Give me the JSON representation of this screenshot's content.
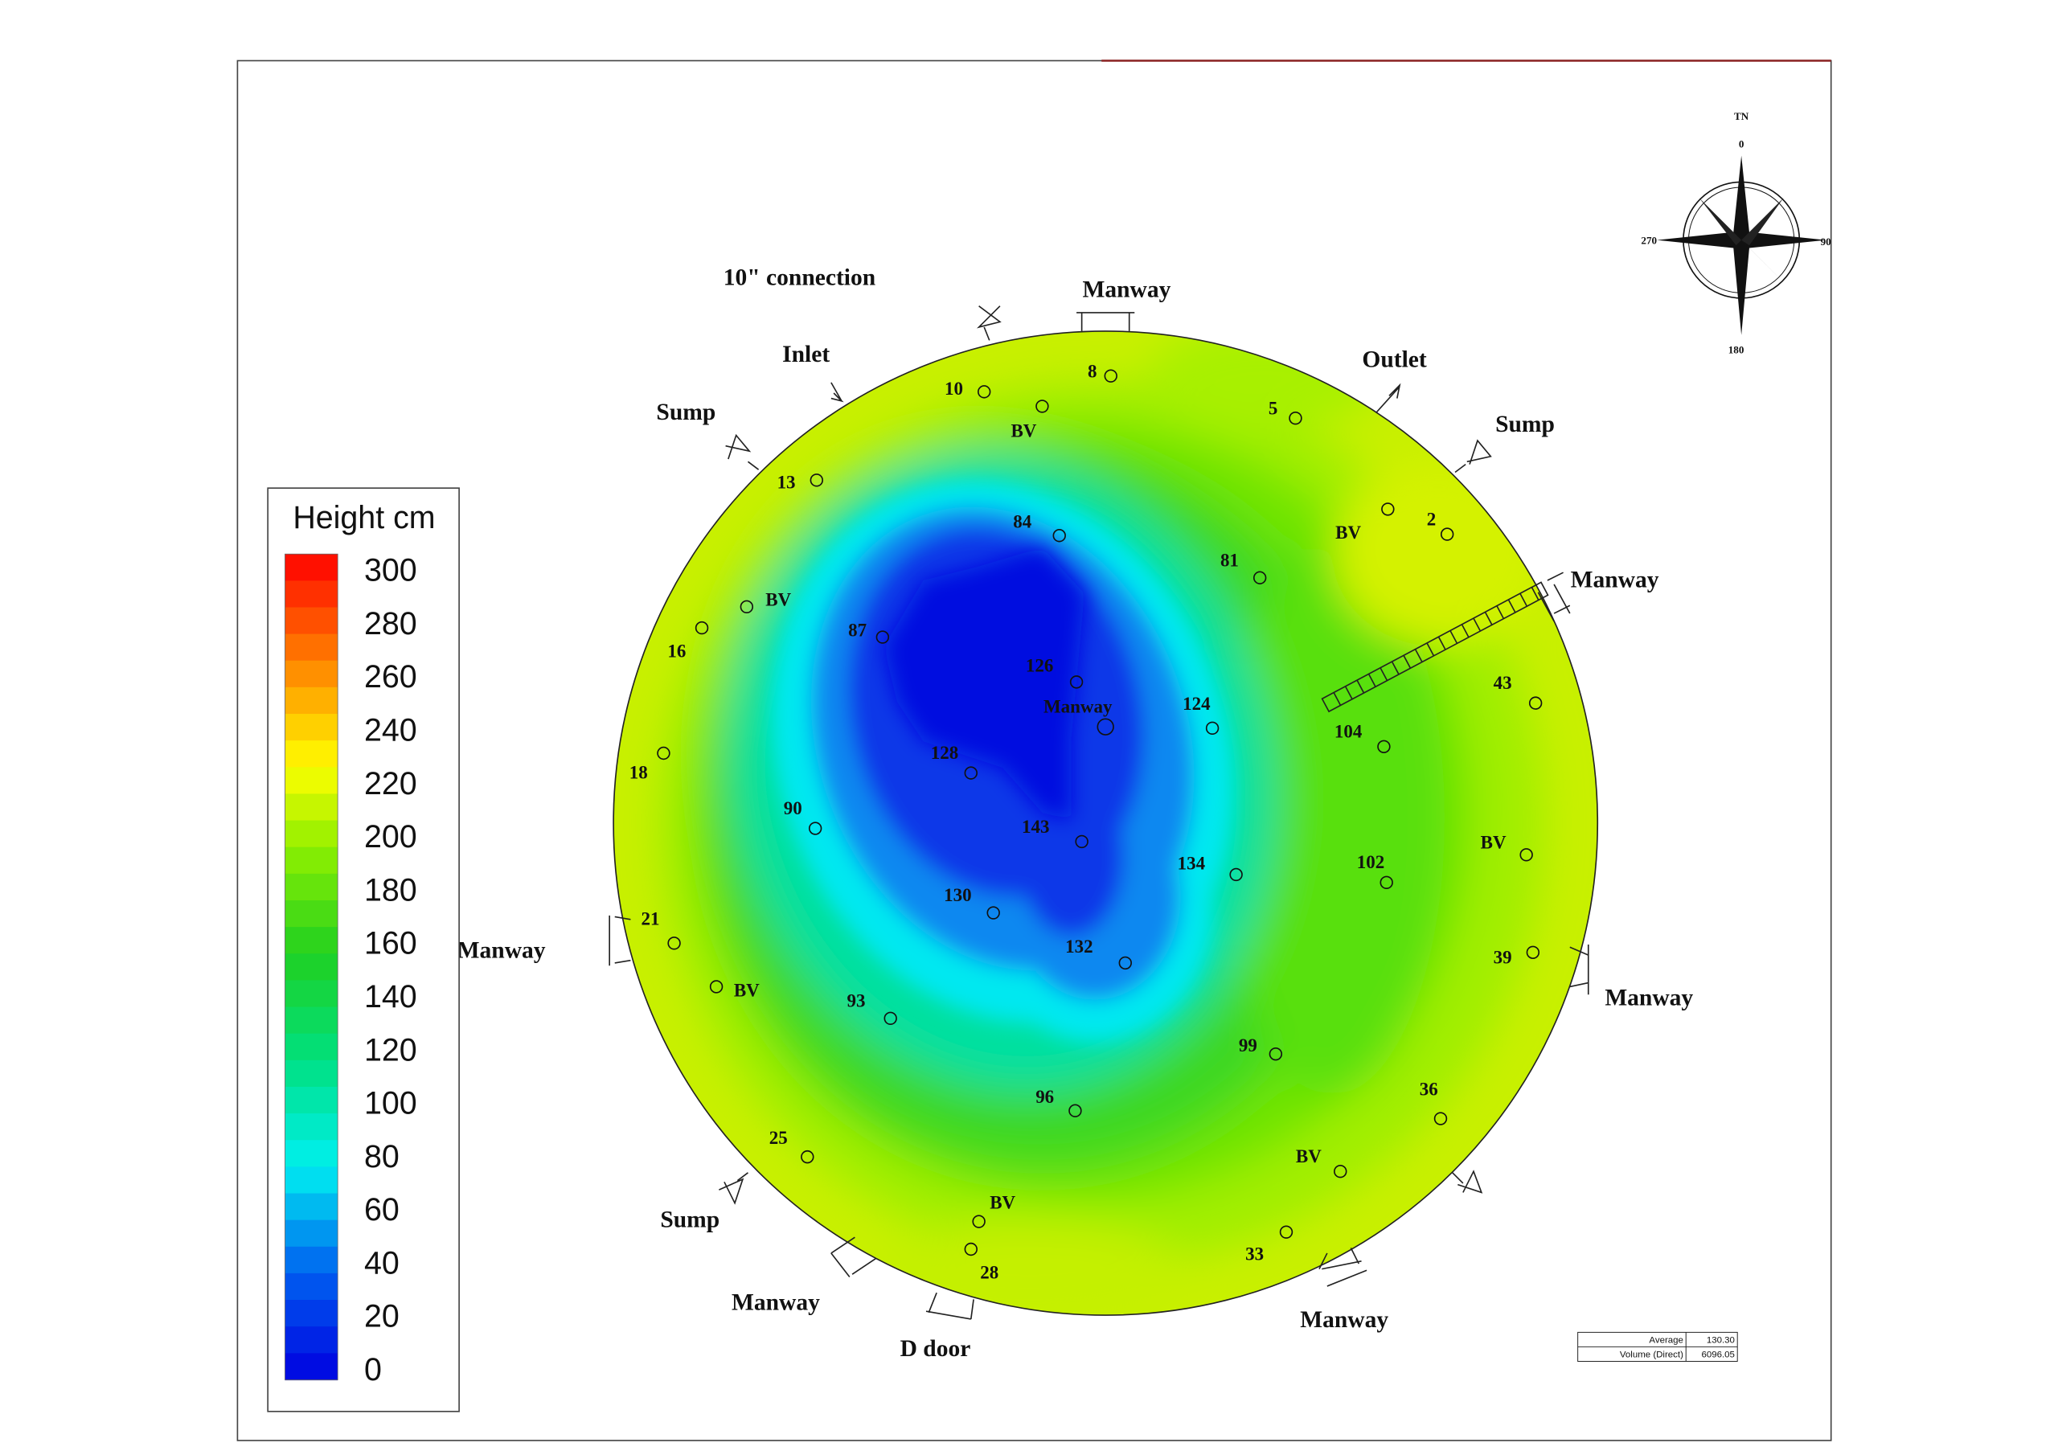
{
  "legend": {
    "title": "Height cm",
    "ticks": [
      300,
      280,
      260,
      240,
      220,
      200,
      180,
      160,
      140,
      120,
      100,
      80,
      60,
      40,
      20,
      0
    ]
  },
  "compass": {
    "title": "TN",
    "ticks": [
      0,
      90,
      180,
      270
    ]
  },
  "points": [
    {
      "label": 8
    },
    {
      "label": 10
    },
    {
      "label": "BV"
    },
    {
      "label": 5
    },
    {
      "label": 13
    },
    {
      "label": 84
    },
    {
      "label": "BV"
    },
    {
      "label": 2
    },
    {
      "label": 81
    },
    {
      "label": "BV"
    },
    {
      "label": 87
    },
    {
      "label": 16
    },
    {
      "label": 126
    },
    {
      "label": "Manway"
    },
    {
      "label": 124
    },
    {
      "label": 104
    },
    {
      "label": 43
    },
    {
      "label": 18
    },
    {
      "label": 128
    },
    {
      "label": 90
    },
    {
      "label": 143
    },
    {
      "label": 134
    },
    {
      "label": 102
    },
    {
      "label": "BV"
    },
    {
      "label": 130
    },
    {
      "label": 21
    },
    {
      "label": 132
    },
    {
      "label": 39
    },
    {
      "label": "BV"
    },
    {
      "label": 93
    },
    {
      "label": 99
    },
    {
      "label": 36
    },
    {
      "label": 96
    },
    {
      "label": 25
    },
    {
      "label": "BV"
    },
    {
      "label": "BV"
    },
    {
      "label": 33
    },
    {
      "label": 28
    }
  ],
  "annotations": [
    "10\" connection",
    "Manway",
    "Inlet",
    "Outlet",
    "Sump",
    "Sump",
    "Manway",
    "Manway",
    "Manway",
    "Sump",
    "Manway",
    "D door",
    "Manway"
  ],
  "summary": {
    "rows": [
      [
        "Average",
        "130.30"
      ],
      [
        "Volume (Direct)",
        "6096.05"
      ]
    ]
  }
}
